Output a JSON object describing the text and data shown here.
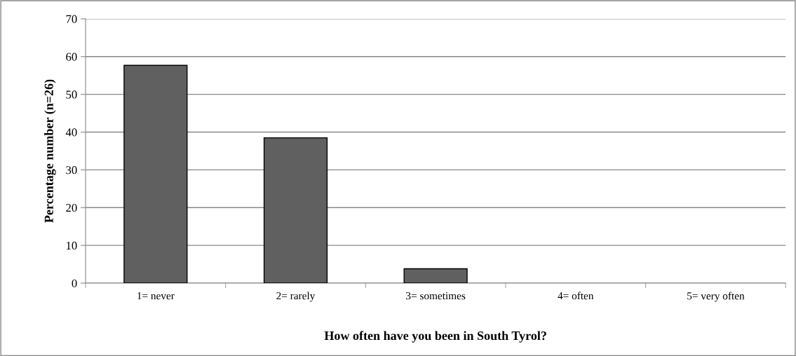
{
  "chart_data": {
    "type": "bar",
    "xlabel": "How often have you been in South Tyrol?",
    "ylabel": "Percentage number (n=26)",
    "categories": [
      "1= never",
      "2= rarely",
      "3= sometimes",
      "4= often",
      "5= very often"
    ],
    "values": [
      57.7,
      38.5,
      3.8,
      0,
      0
    ],
    "color": "#606060",
    "ylim": [
      0,
      70
    ],
    "yticks": [
      0,
      10,
      20,
      30,
      40,
      50,
      60,
      70
    ],
    "grid": "y",
    "legend": false
  }
}
